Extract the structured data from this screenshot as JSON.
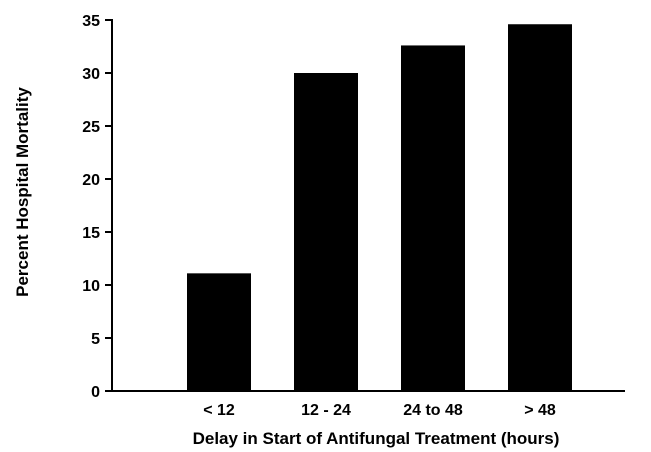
{
  "chart_data": {
    "type": "bar",
    "title": "",
    "xlabel": "Delay in Start of Antifungal Treatment (hours)",
    "ylabel": "Percent Hospital Mortality",
    "categories": [
      "< 12",
      "12 - 24",
      "24 to 48",
      "> 48"
    ],
    "values": [
      11.1,
      30.0,
      32.6,
      34.6
    ],
    "ylim": [
      0,
      35
    ],
    "yticks": [
      0,
      5,
      10,
      15,
      20,
      25,
      30,
      35
    ],
    "ytick_labels": [
      "0",
      "5",
      "10",
      "15",
      "20",
      "25",
      "30",
      "35"
    ],
    "grid": false,
    "legend": "none",
    "colors": {
      "bar": "#000000",
      "axis": "#000000"
    }
  }
}
